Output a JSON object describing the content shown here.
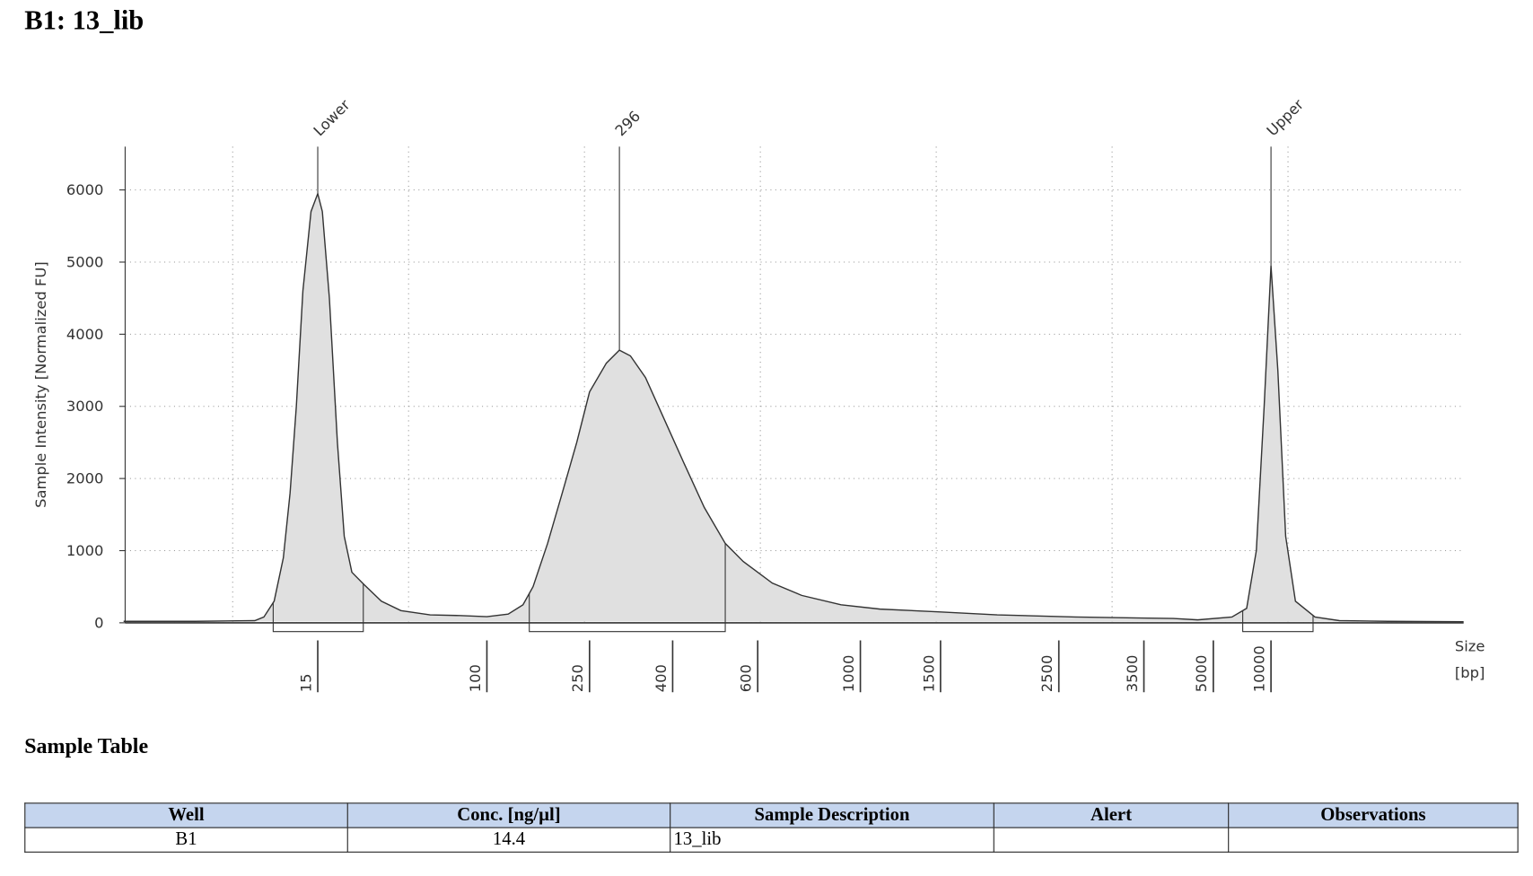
{
  "chart_data": {
    "type": "area",
    "title": "B1: 13_lib",
    "y_label": "Sample Intensity [Normalized FU]",
    "x_label": "Size",
    "x_unit": "[bp]",
    "x": [
      1.7,
      3.8,
      7.4,
      8.2,
      9.2,
      10.2,
      11,
      11.8,
      12.7,
      13.9,
      15,
      15.8,
      17.1,
      18.7,
      20.2,
      22,
      25,
      30.6,
      38.1,
      52.9,
      73.6,
      100,
      121,
      138,
      151,
      172,
      196,
      223,
      250,
      275,
      296,
      315,
      343,
      383,
      423,
      465,
      514,
      560,
      645,
      747,
      908,
      1104,
      1500,
      1916,
      2670,
      4070,
      4615,
      6250,
      7460,
      8385,
      9210,
      10000,
      10860,
      11930,
      13420,
      16970,
      22760,
      40950,
      101200
    ],
    "series": [
      {
        "color": "#333333",
        "fill": "#e0e0e0",
        "values": [
          20,
          20,
          30,
          80,
          300,
          900,
          1800,
          3000,
          4600,
          5700,
          5950,
          5700,
          4500,
          2500,
          1200,
          700,
          540,
          300,
          170,
          110,
          100,
          85,
          120,
          250,
          500,
          1100,
          1800,
          2500,
          3200,
          3600,
          3780,
          3700,
          3400,
          2800,
          2200,
          1600,
          1100,
          850,
          550,
          380,
          250,
          190,
          150,
          110,
          80,
          60,
          40,
          80,
          200,
          1000,
          3000,
          4950,
          3500,
          1200,
          300,
          80,
          30,
          20,
          15
        ]
      }
    ],
    "xticks": [
      15,
      100,
      250,
      400,
      600,
      1000,
      1500,
      2500,
      3500,
      5000,
      10000
    ],
    "ylim": [
      0,
      6600
    ],
    "yticks": [
      0,
      1000,
      2000,
      3000,
      4000,
      5000,
      6000
    ],
    "grid": true,
    "peaks": [
      {
        "label": "Lower",
        "x": 15
      },
      {
        "label": "296",
        "x": 296
      },
      {
        "label": "Upper",
        "x": 10000
      }
    ],
    "regions": [
      [
        9.1,
        25
      ],
      [
        146,
        514
      ],
      [
        7120,
        16580
      ]
    ]
  },
  "sample_table": {
    "title": "Sample Table",
    "columns": [
      "Well",
      "Conc. [ng/µl]",
      "Sample Description",
      "Alert",
      "Observations"
    ],
    "rows": [
      [
        "B1",
        14.4,
        "13_lib"
      ]
    ]
  }
}
